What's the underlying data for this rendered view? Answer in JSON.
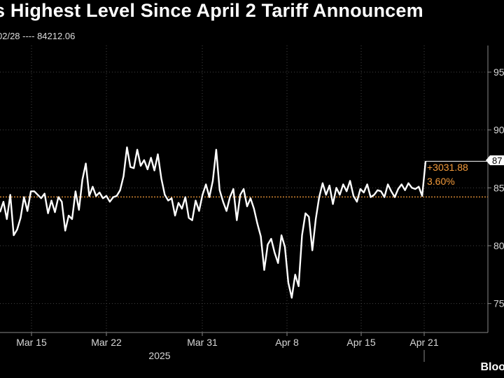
{
  "title": "s Highest Level Since April 2 Tariff Announcem",
  "subtitle": "02/28 ---- 84212.06",
  "source_logo": "Bloo",
  "colors": {
    "background": "#000000",
    "line": "#ffffff",
    "reference": "#f29a3a",
    "axis": "#888888"
  },
  "chart_data": {
    "type": "line",
    "title": "s Highest Level Since April 2 Tariff Announcem",
    "x_ticks": [
      "Mar 15",
      "Mar 22",
      "Mar 31",
      "Apr 8",
      "Apr 15",
      "Apr 21"
    ],
    "x_year_label": "2025",
    "y_ticks": [
      "95",
      "90",
      "85",
      "80",
      "75"
    ],
    "y_tick_values": [
      95000,
      90000,
      85000,
      80000,
      75000
    ],
    "ylim": [
      72500,
      97300
    ],
    "reference_line": {
      "label": "02/28",
      "value": 84212.06
    },
    "last_value_label": "87",
    "change_label": "+3031.88",
    "change_pct_label": "3.60%",
    "series": [
      {
        "values": [
          82900,
          83800,
          82300,
          84400,
          80900,
          81400,
          82400,
          84200,
          83000,
          84700,
          84700,
          84400,
          84100,
          84500,
          82800,
          83900,
          82900,
          84200,
          83800,
          81300,
          82600,
          82300,
          84700,
          83100,
          85700,
          87100,
          84300,
          85100,
          84300,
          84600,
          84100,
          84300,
          83800,
          84200,
          84300,
          84800,
          86000,
          88500,
          86800,
          86700,
          88300,
          86900,
          87400,
          86600,
          87600,
          86500,
          87900,
          85800,
          84400,
          83900,
          84100,
          82600,
          83700,
          83200,
          84200,
          82400,
          82200,
          83900,
          83000,
          84400,
          85300,
          84200,
          85600,
          88300,
          84800,
          83800,
          83000,
          84200,
          84900,
          82200,
          84400,
          84900,
          83400,
          84100,
          83200,
          81900,
          80800,
          77900,
          80100,
          80600,
          79400,
          78500,
          80900,
          79900,
          76800,
          75500,
          77500,
          76500,
          80900,
          82800,
          82500,
          79600,
          82300,
          84200,
          85400,
          84400,
          85200,
          83600,
          85000,
          84400,
          85300,
          84700,
          85600,
          84300,
          83800,
          84900,
          84600,
          85300,
          84200,
          84400,
          84800,
          84700,
          84200,
          85300,
          84700,
          84200,
          84900,
          85300,
          84800,
          85400,
          85000,
          84900,
          85100,
          84300,
          87300
        ]
      }
    ]
  }
}
